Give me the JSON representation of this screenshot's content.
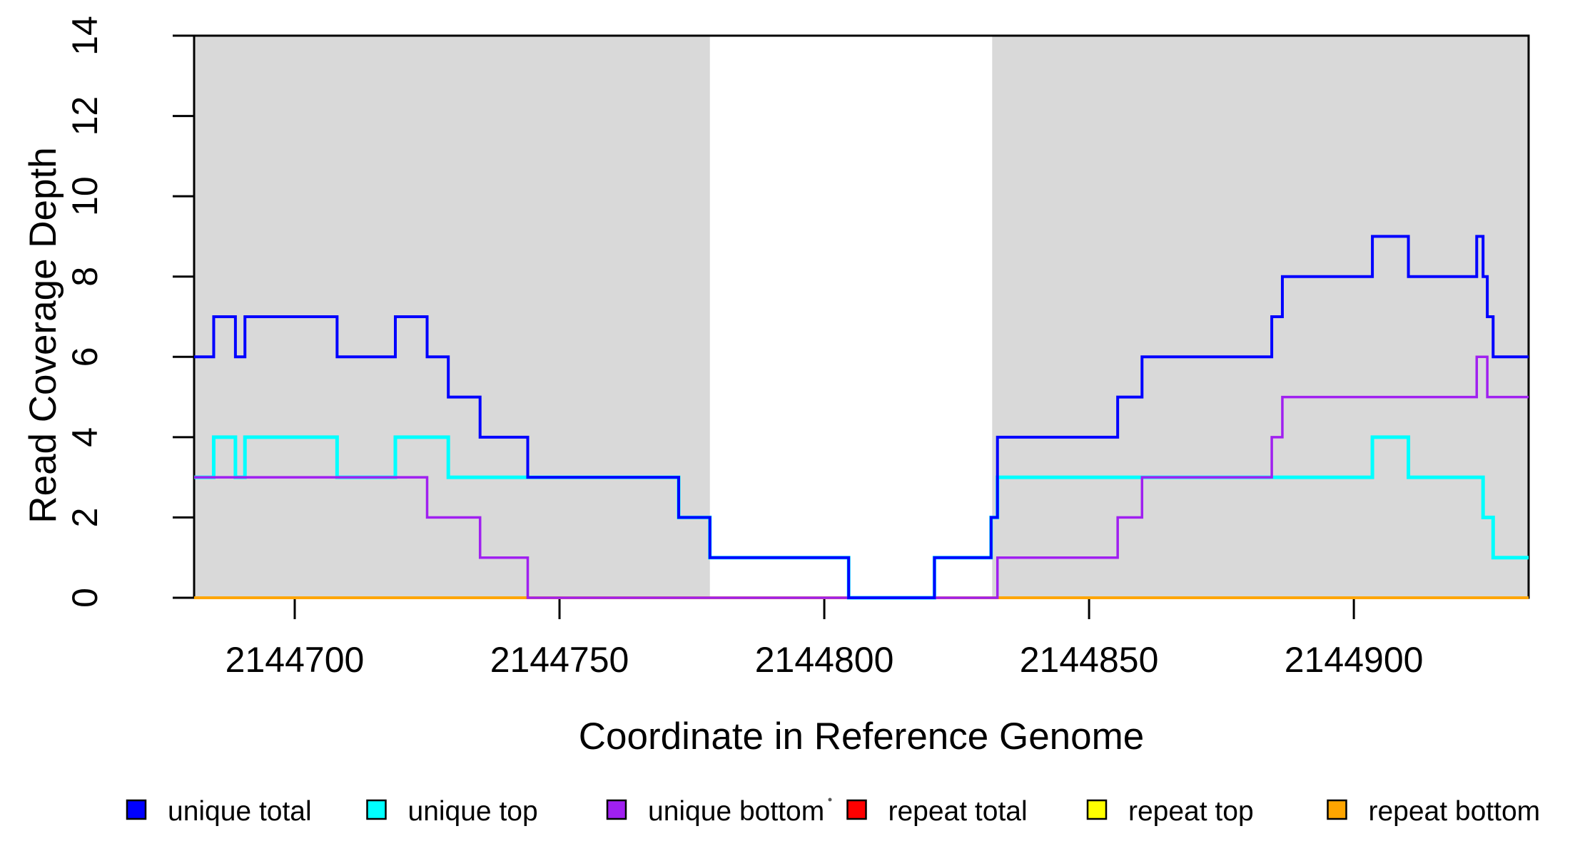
{
  "chart_data": {
    "type": "step-line",
    "title": "",
    "xlabel": "Coordinate in Reference Genome",
    "ylabel": "Read Coverage Depth",
    "xlim": [
      2144681,
      2144933
    ],
    "ylim": [
      0,
      14
    ],
    "x_ticks": [
      2144700,
      2144750,
      2144800,
      2144850,
      2144900
    ],
    "y_ticks": [
      0,
      2,
      4,
      6,
      8,
      10,
      12,
      14
    ],
    "grid": false,
    "legend_position": "bottom",
    "background_color": "#ffffff",
    "shade_color": "#D9D9D9",
    "shaded_regions": [
      {
        "x_start": 2144681,
        "x_end": 2144778.4
      },
      {
        "x_start": 2144831.7,
        "x_end": 2144933
      }
    ],
    "series": [
      {
        "name": "repeat total",
        "color": "#FF0000",
        "steps": [
          [
            2144681,
            0
          ]
        ]
      },
      {
        "name": "repeat top",
        "color": "#FFFF00",
        "steps": [
          [
            2144681,
            0
          ]
        ]
      },
      {
        "name": "repeat bottom",
        "color": "#FFA500",
        "steps": [
          [
            2144681,
            0
          ]
        ]
      },
      {
        "name": "unique top",
        "color": "#00FFFF",
        "steps": [
          [
            2144681,
            3
          ],
          [
            2144684.7,
            4
          ],
          [
            2144688.8,
            3
          ],
          [
            2144690.6,
            4
          ],
          [
            2144708,
            3
          ],
          [
            2144719,
            4
          ],
          [
            2144729,
            3
          ],
          [
            2144772.5,
            2
          ],
          [
            2144778.4,
            1
          ],
          [
            2144804.6,
            0
          ],
          [
            2144820.8,
            1
          ],
          [
            2144831.5,
            2
          ],
          [
            2144832.7,
            3
          ],
          [
            2144903.5,
            4
          ],
          [
            2144910.3,
            3
          ],
          [
            2144924.4,
            2
          ],
          [
            2144926.3,
            1
          ]
        ]
      },
      {
        "name": "unique bottom",
        "color": "#A020F0",
        "steps": [
          [
            2144681,
            3
          ],
          [
            2144725,
            2
          ],
          [
            2144735,
            1
          ],
          [
            2144744,
            0
          ],
          [
            2144832.7,
            1
          ],
          [
            2144855.4,
            2
          ],
          [
            2144860,
            3
          ],
          [
            2144884.5,
            4
          ],
          [
            2144886.5,
            5
          ],
          [
            2144923.2,
            6
          ],
          [
            2144925.2,
            5
          ]
        ]
      },
      {
        "name": "unique total",
        "color": "#0000FF",
        "steps": [
          [
            2144681,
            6
          ],
          [
            2144684.7,
            7
          ],
          [
            2144688.8,
            6
          ],
          [
            2144690.6,
            7
          ],
          [
            2144708,
            6
          ],
          [
            2144719,
            7
          ],
          [
            2144725,
            6
          ],
          [
            2144729,
            5
          ],
          [
            2144735,
            4
          ],
          [
            2144744,
            3
          ],
          [
            2144772.5,
            2
          ],
          [
            2144778.4,
            1
          ],
          [
            2144804.6,
            0
          ],
          [
            2144820.8,
            1
          ],
          [
            2144831.5,
            2
          ],
          [
            2144832.7,
            4
          ],
          [
            2144855.4,
            5
          ],
          [
            2144860,
            6
          ],
          [
            2144884.5,
            7
          ],
          [
            2144886.5,
            8
          ],
          [
            2144903.5,
            9
          ],
          [
            2144910.3,
            8
          ],
          [
            2144923.2,
            9
          ],
          [
            2144924.4,
            8
          ],
          [
            2144925.2,
            7
          ],
          [
            2144926.3,
            6
          ]
        ]
      }
    ]
  },
  "legend": {
    "items": [
      {
        "label": "unique total",
        "color": "#0000FF"
      },
      {
        "label": "unique top",
        "color": "#00FFFF"
      },
      {
        "label": "unique bottom",
        "color": "#A020F0"
      },
      {
        "label": "repeat total",
        "color": "#FF0000"
      },
      {
        "label": "repeat top",
        "color": "#FFFF00"
      },
      {
        "label": "repeat bottom",
        "color": "#FFA500"
      }
    ]
  }
}
